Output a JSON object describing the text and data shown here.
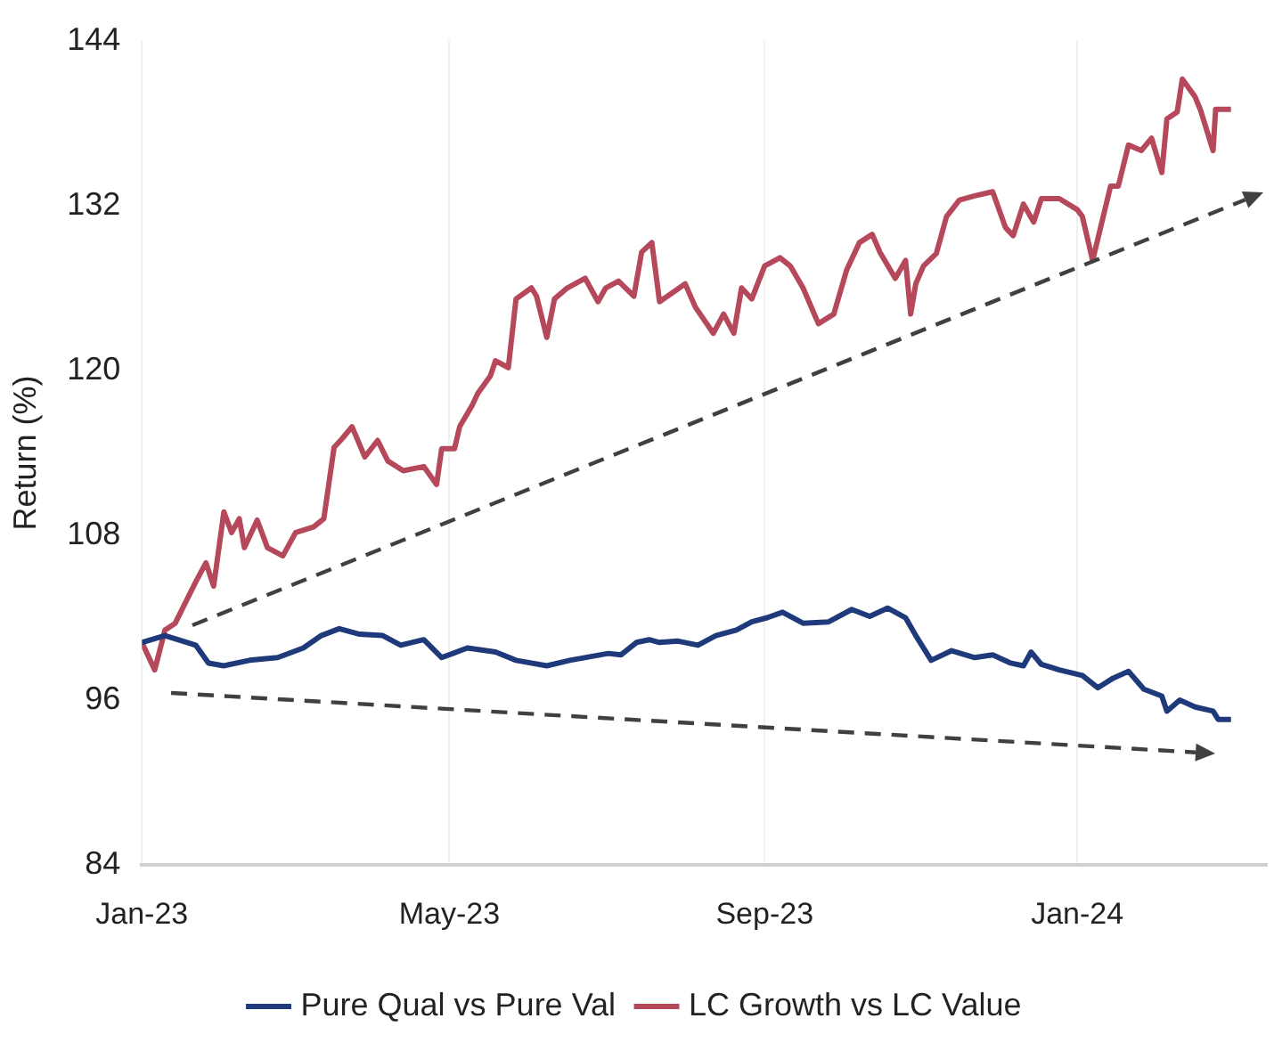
{
  "chart_data": {
    "type": "line",
    "ylabel": "Return (%)",
    "xlim": [
      "2023-01-01",
      "2024-03-15"
    ],
    "xticks": [
      {
        "value": "2023-01-01",
        "label": "Jan-23"
      },
      {
        "value": "2023-05-01",
        "label": "May-23"
      },
      {
        "value": "2023-09-01",
        "label": "Sep-23"
      },
      {
        "value": "2024-01-01",
        "label": "Jan-24"
      }
    ],
    "ylim": [
      84,
      144
    ],
    "yticks": [
      84,
      96,
      108,
      120,
      132,
      144
    ],
    "grid": "x",
    "legend": "bottom",
    "marker": "none",
    "line_style": "solid",
    "series": [
      {
        "name": "Pure Qual vs Pure Val",
        "color": "#1f3a7a",
        "x": [
          "2023-01-01",
          "2023-01-10",
          "2023-01-22",
          "2023-01-27",
          "2023-02-02",
          "2023-02-12",
          "2023-02-23",
          "2023-03-05",
          "2023-03-12",
          "2023-03-19",
          "2023-03-27",
          "2023-04-05",
          "2023-04-12",
          "2023-04-21",
          "2023-04-28",
          "2023-05-08",
          "2023-05-19",
          "2023-05-27",
          "2023-06-08",
          "2023-06-17",
          "2023-07-02",
          "2023-07-07",
          "2023-07-13",
          "2023-07-18",
          "2023-07-22",
          "2023-07-29",
          "2023-08-06",
          "2023-08-13",
          "2023-08-21",
          "2023-08-27",
          "2023-09-02",
          "2023-09-08",
          "2023-09-16",
          "2023-09-26",
          "2023-10-05",
          "2023-10-12",
          "2023-10-19",
          "2023-10-26",
          "2023-10-30",
          "2023-11-05",
          "2023-11-13",
          "2023-11-22",
          "2023-11-29",
          "2023-12-06",
          "2023-12-11",
          "2023-12-14",
          "2023-12-18",
          "2023-12-25",
          "2024-01-03",
          "2024-01-09",
          "2024-01-15",
          "2024-01-21",
          "2024-01-27",
          "2024-02-03",
          "2024-02-05",
          "2024-02-10",
          "2024-02-16",
          "2024-02-23",
          "2024-02-25",
          "2024-03-01"
        ],
        "values": [
          100.2,
          100.7,
          100.0,
          98.7,
          98.5,
          98.9,
          99.1,
          99.8,
          100.7,
          101.2,
          100.8,
          100.7,
          100.0,
          100.4,
          99.1,
          99.8,
          99.5,
          98.9,
          98.5,
          98.9,
          99.4,
          99.3,
          100.2,
          100.4,
          100.2,
          100.3,
          100.0,
          100.7,
          101.1,
          101.7,
          102.0,
          102.4,
          101.6,
          101.7,
          102.6,
          102.1,
          102.7,
          102.0,
          100.7,
          98.9,
          99.6,
          99.1,
          99.3,
          98.7,
          98.5,
          99.5,
          98.6,
          98.2,
          97.8,
          96.9,
          97.6,
          98.1,
          96.8,
          96.3,
          95.2,
          96.0,
          95.5,
          95.2,
          94.6,
          94.6
        ]
      },
      {
        "name": "LC Growth vs LC Value",
        "color": "#b5485a",
        "x": [
          "2023-01-01",
          "2023-01-06",
          "2023-01-10",
          "2023-01-14",
          "2023-01-22",
          "2023-01-26",
          "2023-01-29",
          "2023-02-02",
          "2023-02-05",
          "2023-02-08",
          "2023-02-10",
          "2023-02-15",
          "2023-02-19",
          "2023-02-25",
          "2023-03-02",
          "2023-03-09",
          "2023-03-13",
          "2023-03-17",
          "2023-03-20",
          "2023-03-24",
          "2023-03-29",
          "2023-04-03",
          "2023-04-07",
          "2023-04-13",
          "2023-04-21",
          "2023-04-26",
          "2023-04-28",
          "2023-05-03",
          "2023-05-05",
          "2023-05-10",
          "2023-05-12",
          "2023-05-17",
          "2023-05-19",
          "2023-05-24",
          "2023-05-27",
          "2023-06-02",
          "2023-06-04",
          "2023-06-08",
          "2023-06-11",
          "2023-06-16",
          "2023-06-23",
          "2023-06-28",
          "2023-07-01",
          "2023-07-06",
          "2023-07-12",
          "2023-07-15",
          "2023-07-19",
          "2023-07-22",
          "2023-07-29",
          "2023-08-01",
          "2023-08-05",
          "2023-08-12",
          "2023-08-16",
          "2023-08-20",
          "2023-08-23",
          "2023-08-27",
          "2023-09-01",
          "2023-09-07",
          "2023-09-11",
          "2023-09-16",
          "2023-09-22",
          "2023-09-28",
          "2023-10-03",
          "2023-10-08",
          "2023-10-13",
          "2023-10-16",
          "2023-10-22",
          "2023-10-26",
          "2023-10-28",
          "2023-10-30",
          "2023-11-02",
          "2023-11-07",
          "2023-11-11",
          "2023-11-16",
          "2023-11-22",
          "2023-11-29",
          "2023-12-04",
          "2023-12-07",
          "2023-12-11",
          "2023-12-15",
          "2023-12-18",
          "2023-12-25",
          "2024-01-01",
          "2024-01-03",
          "2024-01-07",
          "2024-01-14",
          "2024-01-17",
          "2024-01-21",
          "2024-01-26",
          "2024-01-30",
          "2024-02-03",
          "2024-02-05",
          "2024-02-09",
          "2024-02-11",
          "2024-02-16",
          "2024-02-18",
          "2024-02-23",
          "2024-02-24",
          "2024-03-01"
        ],
        "values": [
          100.2,
          98.2,
          101.1,
          101.6,
          104.6,
          106.0,
          104.3,
          109.7,
          108.2,
          109.2,
          107.1,
          109.1,
          107.1,
          106.5,
          108.2,
          108.6,
          109.2,
          114.4,
          115.0,
          115.9,
          113.7,
          114.9,
          113.4,
          112.7,
          113.0,
          111.7,
          114.3,
          114.3,
          115.9,
          117.5,
          118.3,
          119.6,
          120.7,
          120.2,
          125.2,
          126.0,
          125.4,
          122.4,
          125.2,
          126.0,
          126.7,
          125.0,
          126.0,
          126.5,
          125.4,
          128.6,
          129.3,
          125.0,
          125.9,
          126.3,
          124.6,
          122.7,
          124.1,
          122.7,
          126.0,
          125.2,
          127.6,
          128.2,
          127.6,
          126.0,
          123.4,
          124.1,
          127.3,
          129.3,
          129.9,
          128.6,
          126.7,
          128.0,
          124.1,
          126.3,
          127.6,
          128.5,
          131.2,
          132.4,
          132.7,
          133.0,
          130.4,
          129.8,
          132.1,
          130.8,
          132.5,
          132.5,
          131.7,
          131.2,
          128.0,
          133.4,
          133.4,
          136.4,
          136.0,
          136.9,
          134.4,
          138.3,
          138.8,
          141.2,
          139.9,
          139.0,
          136.0,
          139.0,
          139.0
        ]
      }
    ]
  }
}
